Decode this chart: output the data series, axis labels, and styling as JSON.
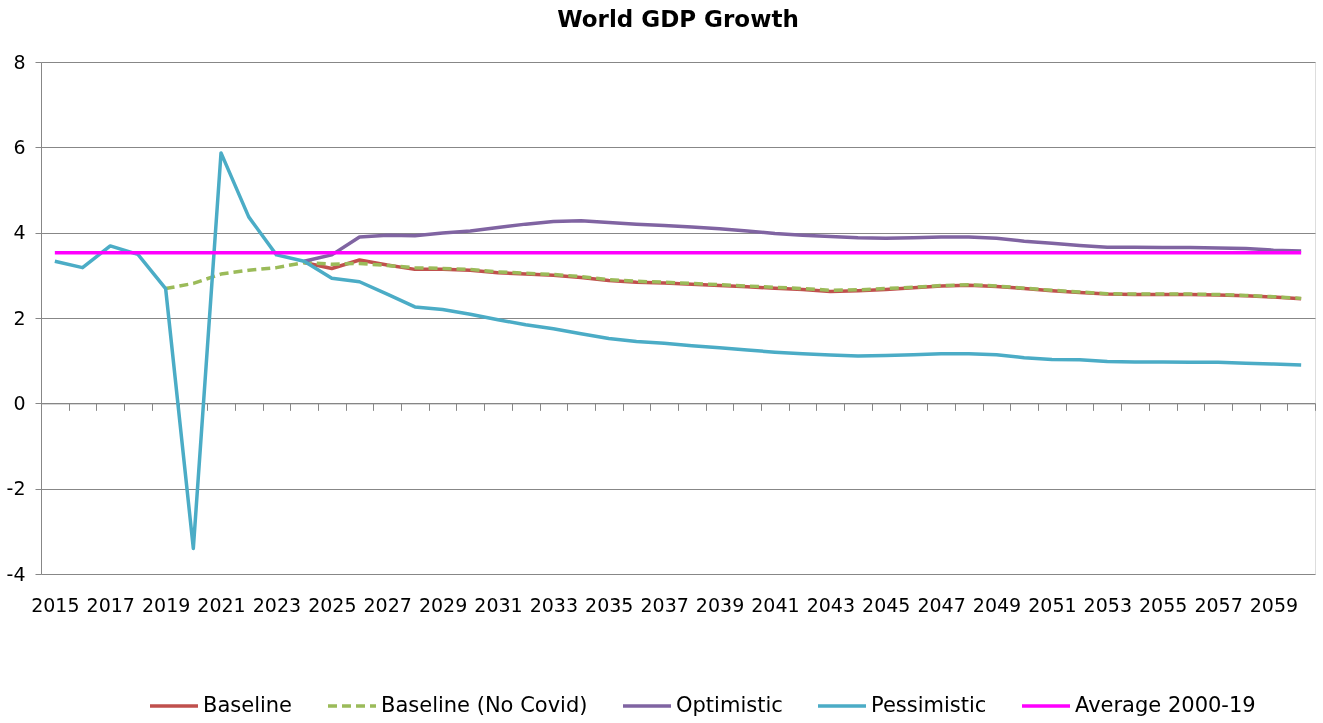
{
  "chart_data": {
    "type": "line",
    "title": "World GDP Growth",
    "categories": [
      "2015",
      null,
      "2017",
      null,
      "2019",
      null,
      "2021",
      null,
      "2023",
      null,
      "2025",
      null,
      "2027",
      null,
      "2029",
      null,
      "2031",
      null,
      "2033",
      null,
      "2035",
      null,
      "2037",
      null,
      "2039",
      null,
      "2041",
      null,
      "2043",
      null,
      "2045",
      null,
      "2047",
      null,
      "2049",
      null,
      "2051",
      null,
      "2053",
      null,
      "2055",
      null,
      "2057",
      null,
      "2059",
      null
    ],
    "series": [
      {
        "name": "Baseline",
        "color": "#c0504d",
        "values": [
          null,
          null,
          null,
          null,
          null,
          null,
          null,
          null,
          null,
          3.3,
          3.16,
          3.36,
          3.24,
          3.14,
          3.14,
          3.12,
          3.06,
          3.03,
          3.0,
          2.95,
          2.88,
          2.84,
          2.82,
          2.79,
          2.76,
          2.73,
          2.7,
          2.67,
          2.62,
          2.64,
          2.67,
          2.71,
          2.75,
          2.77,
          2.74,
          2.69,
          2.64,
          2.6,
          2.56,
          2.55,
          2.55,
          2.55,
          2.54,
          2.52,
          2.49,
          2.45
        ]
      },
      {
        "name": "Baseline (No Covid)",
        "color": "#9bbb59",
        "line_style": "dashed",
        "values": [
          null,
          null,
          null,
          null,
          2.69,
          2.81,
          3.03,
          3.12,
          3.18,
          3.3,
          3.26,
          3.28,
          3.23,
          3.18,
          3.16,
          3.14,
          3.08,
          3.05,
          3.02,
          2.97,
          2.9,
          2.86,
          2.84,
          2.81,
          2.78,
          2.75,
          2.72,
          2.69,
          2.65,
          2.66,
          2.69,
          2.72,
          2.76,
          2.78,
          2.75,
          2.7,
          2.65,
          2.61,
          2.57,
          2.56,
          2.56,
          2.56,
          2.55,
          2.53,
          2.5,
          2.46
        ]
      },
      {
        "name": "Optimistic",
        "color": "#8064a2",
        "values": [
          null,
          null,
          null,
          null,
          null,
          null,
          null,
          null,
          null,
          3.33,
          3.48,
          3.9,
          3.94,
          3.93,
          3.99,
          4.04,
          4.12,
          4.2,
          4.26,
          4.28,
          4.24,
          4.2,
          4.17,
          4.13,
          4.09,
          4.04,
          3.98,
          3.94,
          3.91,
          3.88,
          3.87,
          3.88,
          3.9,
          3.9,
          3.87,
          3.8,
          3.75,
          3.7,
          3.66,
          3.66,
          3.65,
          3.65,
          3.64,
          3.63,
          3.59,
          3.57
        ]
      },
      {
        "name": "Pessimistic",
        "color": "#4bacc6",
        "values": [
          3.33,
          3.18,
          3.69,
          3.49,
          2.69,
          -3.4,
          5.87,
          4.37,
          3.48,
          3.33,
          2.93,
          2.85,
          2.56,
          2.26,
          2.2,
          2.09,
          1.96,
          1.84,
          1.75,
          1.63,
          1.52,
          1.45,
          1.41,
          1.35,
          1.3,
          1.25,
          1.2,
          1.16,
          1.13,
          1.11,
          1.12,
          1.14,
          1.16,
          1.16,
          1.14,
          1.07,
          1.03,
          1.02,
          0.98,
          0.97,
          0.97,
          0.96,
          0.96,
          0.94,
          0.92,
          0.9
        ]
      },
      {
        "name": "Average 2000-19",
        "color": "#ff00ff",
        "values": [
          3.53,
          3.53,
          3.53,
          3.53,
          3.53,
          3.53,
          3.53,
          3.53,
          3.53,
          3.53,
          3.53,
          3.53,
          3.53,
          3.53,
          3.53,
          3.53,
          3.53,
          3.53,
          3.53,
          3.53,
          3.53,
          3.53,
          3.53,
          3.53,
          3.53,
          3.53,
          3.53,
          3.53,
          3.53,
          3.53,
          3.53,
          3.53,
          3.53,
          3.53,
          3.53,
          3.53,
          3.53,
          3.53,
          3.53,
          3.53,
          3.53,
          3.53,
          3.53,
          3.53,
          3.53,
          3.53
        ]
      }
    ],
    "ylim": [
      -4,
      8
    ],
    "yticks": [
      -4,
      -2,
      0,
      2,
      4,
      6,
      8
    ],
    "grid": "y",
    "legend": "bottom",
    "line_style": "solid"
  }
}
